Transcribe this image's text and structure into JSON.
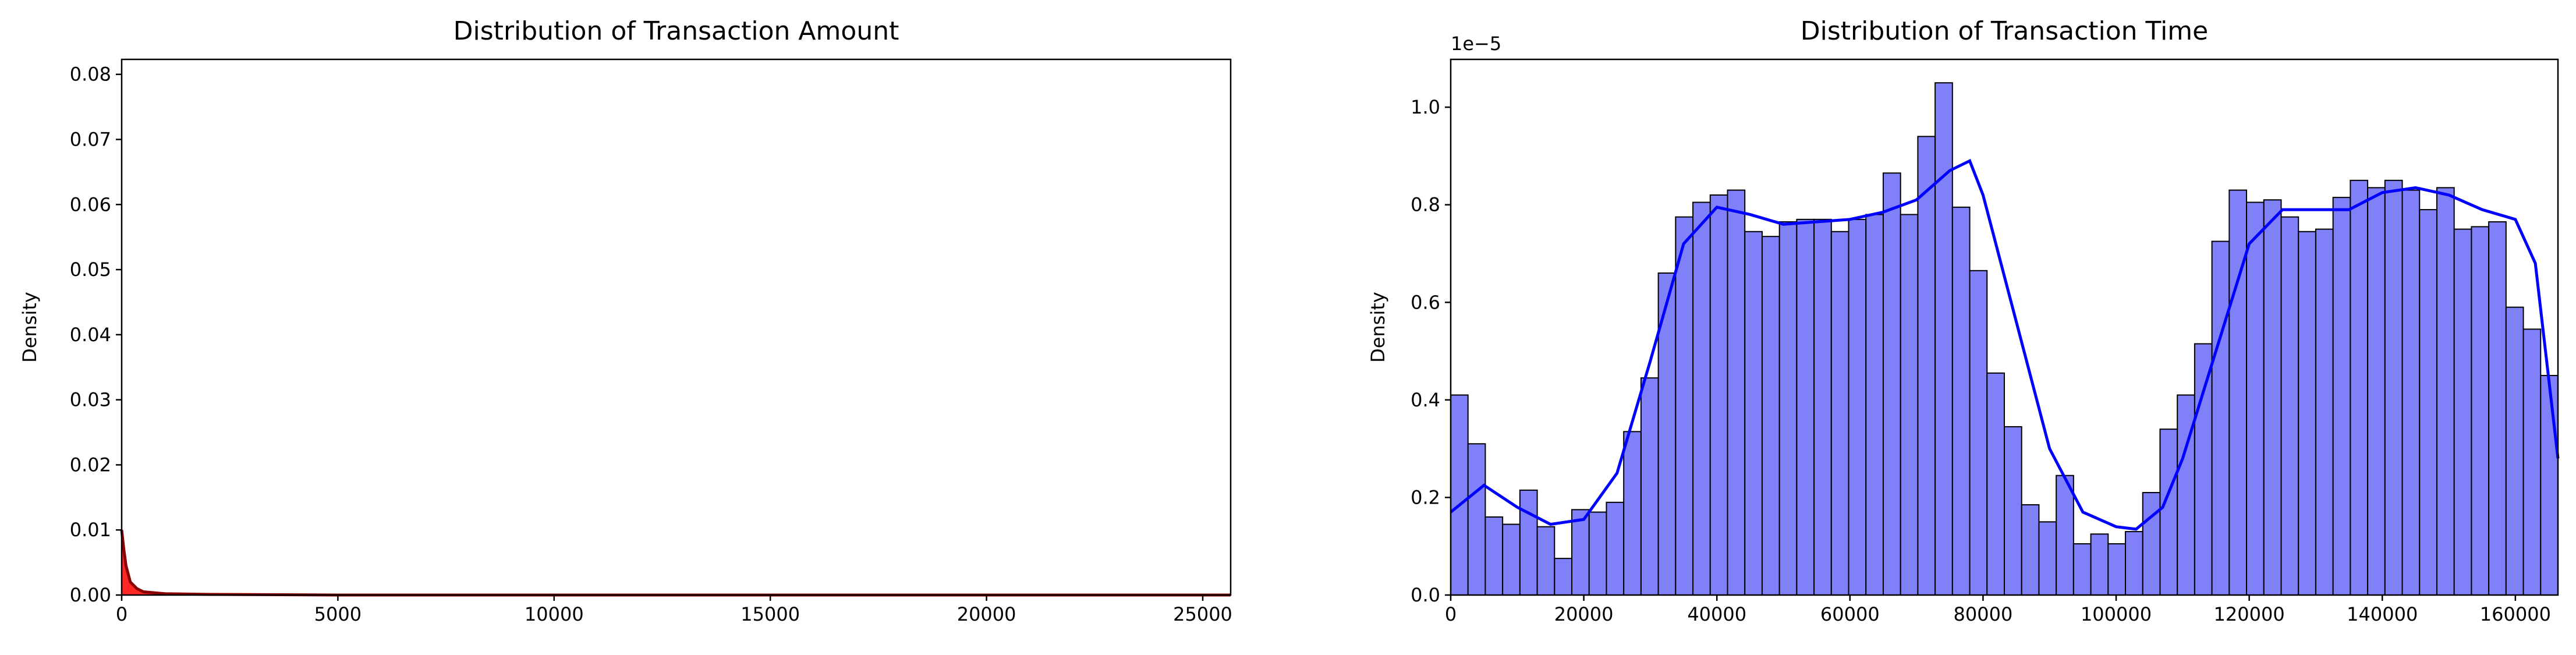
{
  "chart_data": [
    {
      "type": "kde",
      "title": "Distribution of Transaction Amount",
      "ylabel": "Density",
      "x": [
        0,
        50,
        100,
        200,
        350,
        500,
        1000,
        2000,
        5000,
        25646
      ],
      "values": [
        0.01,
        0.007,
        0.0045,
        0.002,
        0.001,
        0.0005,
        0.0002,
        0.0001,
        0,
        0
      ],
      "color": "#8b0000",
      "fill_color": "#ff0000",
      "xlim": [
        0,
        25646
      ],
      "ylim": [
        0,
        0.0823
      ],
      "xticks": [
        0,
        5000,
        10000,
        15000,
        20000,
        25000
      ],
      "yticks": [
        {
          "value": 0,
          "label": "0.00"
        },
        {
          "value": 0.01,
          "label": "0.01"
        },
        {
          "value": 0.02,
          "label": "0.02"
        },
        {
          "value": 0.03,
          "label": "0.03"
        },
        {
          "value": 0.04,
          "label": "0.04"
        },
        {
          "value": 0.05,
          "label": "0.05"
        },
        {
          "value": 0.06,
          "label": "0.06"
        },
        {
          "value": 0.07,
          "label": "0.07"
        },
        {
          "value": 0.08,
          "label": "0.08"
        }
      ]
    },
    {
      "type": "histogram",
      "title": "Distribution of Transaction Time",
      "ylabel": "Density",
      "offset_label": "1e−5",
      "bins": [
        0,
        2600,
        5200,
        7800,
        10400,
        13000,
        15600,
        18200,
        20800,
        23400,
        26000,
        28600,
        31200,
        33800,
        36400,
        39000,
        41600,
        44200,
        46800,
        49400,
        52000,
        54600,
        57200,
        59800,
        62400,
        65000,
        67600,
        70200,
        72800,
        75400,
        78000,
        80600,
        83200,
        85800,
        88400,
        91000,
        93600,
        96200,
        98800,
        101400,
        104000,
        106600,
        109200,
        111800,
        114400,
        117000,
        119600,
        122200,
        124800,
        127400,
        130000,
        132600,
        135200,
        137800,
        140400,
        143000,
        145600,
        148200,
        150800,
        153400,
        156000,
        158600,
        161200,
        163800,
        166400
      ],
      "values": [
        0.41,
        0.31,
        0.16,
        0.145,
        0.215,
        0.14,
        0.075,
        0.175,
        0.17,
        0.19,
        0.335,
        0.445,
        0.66,
        0.775,
        0.805,
        0.82,
        0.83,
        0.745,
        0.735,
        0.765,
        0.77,
        0.77,
        0.745,
        0.77,
        0.78,
        0.865,
        0.78,
        0.94,
        1.05,
        0.795,
        0.665,
        0.455,
        0.345,
        0.185,
        0.15,
        0.245,
        0.105,
        0.125,
        0.105,
        0.13,
        0.21,
        0.34,
        0.41,
        0.515,
        0.725,
        0.83,
        0.805,
        0.81,
        0.775,
        0.745,
        0.75,
        0.815,
        0.85,
        0.835,
        0.85,
        0.83,
        0.79,
        0.835,
        0.75,
        0.755,
        0.765,
        0.59,
        0.545,
        0.45
      ],
      "color": "#8080f8",
      "edgecolor": "#000000",
      "kde": {
        "color": "#0000ff",
        "x": [
          0,
          5000,
          10000,
          15000,
          20000,
          25000,
          30000,
          35000,
          40000,
          45000,
          50000,
          55000,
          60000,
          65000,
          70000,
          75000,
          78000,
          80000,
          85000,
          90000,
          95000,
          100000,
          103000,
          107000,
          110000,
          115000,
          120000,
          125000,
          130000,
          135000,
          140000,
          145000,
          150000,
          155000,
          160000,
          163000,
          166400
        ],
        "values": [
          0.17,
          0.225,
          0.18,
          0.145,
          0.155,
          0.25,
          0.48,
          0.72,
          0.795,
          0.78,
          0.76,
          0.765,
          0.77,
          0.785,
          0.81,
          0.87,
          0.89,
          0.82,
          0.56,
          0.3,
          0.17,
          0.14,
          0.135,
          0.18,
          0.28,
          0.5,
          0.72,
          0.79,
          0.79,
          0.79,
          0.825,
          0.835,
          0.82,
          0.79,
          0.77,
          0.68,
          0.28
        ]
      },
      "xlim": [
        0,
        166400
      ],
      "ylim": [
        0,
        1.098
      ],
      "xticks": [
        0,
        20000,
        40000,
        60000,
        80000,
        100000,
        120000,
        140000,
        160000
      ],
      "yticks": [
        {
          "value": 0,
          "label": "0.0"
        },
        {
          "value": 0.2,
          "label": "0.2"
        },
        {
          "value": 0.4,
          "label": "0.4"
        },
        {
          "value": 0.6,
          "label": "0.6"
        },
        {
          "value": 0.8,
          "label": "0.8"
        },
        {
          "value": 1.0,
          "label": "1.0"
        }
      ]
    }
  ]
}
